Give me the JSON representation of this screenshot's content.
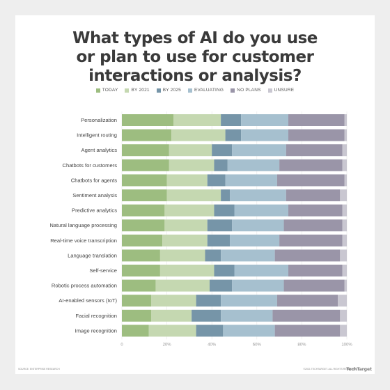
{
  "colors": {
    "TODAY": "#9dbd80",
    "BY 2021": "#c5d8b1",
    "BY 2025": "#7695a8",
    "EVALUATING": "#a6c0cf",
    "NO PLANS": "#9a95a8",
    "UNSURE": "#c9c7d1"
  },
  "chart_data": {
    "type": "bar",
    "orientation": "horizontal",
    "stacked": true,
    "title": "What types of AI do you use or plan to use for customer interactions or analysis?",
    "title_lines": [
      "What types of AI do you use",
      "or plan to use for customer",
      "interactions or analysis?"
    ],
    "categories": [
      "Personalization",
      "Intelligent routing",
      "Agent analytics",
      "Chatbots for customers",
      "Chatbots for agents",
      "Sentiment analysis",
      "Predictive analytics",
      "Natural language processing",
      "Real-time voice transcription",
      "Language translation",
      "Self-service",
      "Robotic process automation",
      "AI-enabled sensors (IoT)",
      "Facial recognition",
      "Image recognition"
    ],
    "series": [
      {
        "name": "TODAY",
        "values": [
          23,
          22,
          21,
          21,
          20,
          20,
          19,
          19,
          18,
          17,
          17,
          15,
          13,
          13,
          12
        ]
      },
      {
        "name": "BY 2021",
        "values": [
          21,
          24,
          19,
          20,
          18,
          24,
          22,
          19,
          20,
          20,
          24,
          24,
          20,
          18,
          21
        ]
      },
      {
        "name": "BY 2025",
        "values": [
          9,
          7,
          9,
          6,
          8,
          4,
          9,
          11,
          10,
          7,
          9,
          10,
          11,
          13,
          12
        ]
      },
      {
        "name": "EVALUATING",
        "values": [
          21,
          21,
          24,
          23,
          23,
          25,
          24,
          23,
          22,
          24,
          24,
          23,
          25,
          23,
          23
        ]
      },
      {
        "name": "NO PLANS",
        "values": [
          25,
          25,
          25,
          28,
          30,
          24,
          24,
          26,
          28,
          29,
          24,
          27,
          27,
          30,
          29
        ]
      },
      {
        "name": "UNSURE",
        "values": [
          1,
          1,
          2,
          2,
          1,
          3,
          2,
          2,
          2,
          3,
          2,
          1,
          4,
          3,
          3
        ]
      }
    ],
    "xticks": [
      "0",
      "20%",
      "40%",
      "60%",
      "80%",
      "100%"
    ],
    "xlim": [
      0,
      100
    ],
    "legend_position": "top"
  },
  "footer": {
    "source": "SOURCE: ENTERPRISE RESEARCH",
    "copyright": "©2021 TECHTARGET. ALL RIGHTS RESERVED",
    "logo": "TechTarget"
  }
}
